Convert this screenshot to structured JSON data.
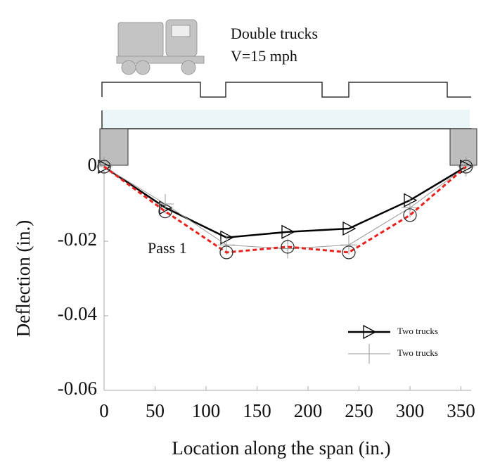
{
  "chart_data": {
    "type": "line",
    "annotations": [
      "Double trucks",
      "V=15 mph",
      "Pass 1"
    ],
    "xlabel": "Location along the span (in.)",
    "ylabel": "Deflection (in.)",
    "x": [
      0,
      60,
      120,
      180,
      240,
      300,
      355
    ],
    "series": [
      {
        "name": "Two trucks",
        "color": "#000000",
        "marker": "triangle",
        "linestyle": "solid",
        "values": [
          0,
          -0.011,
          -0.019,
          -0.0175,
          -0.0166,
          -0.009,
          0
        ]
      },
      {
        "name": "Two trucks",
        "color": "#9a9a9a",
        "marker": "plus",
        "linestyle": "solid",
        "values": [
          0,
          -0.01,
          -0.021,
          -0.022,
          -0.021,
          -0.011,
          0
        ]
      },
      {
        "color": "#e8211c",
        "marker": "circle",
        "linestyle": "dashed",
        "values": [
          0,
          -0.012,
          -0.023,
          -0.0215,
          -0.023,
          -0.013,
          0
        ]
      }
    ],
    "xlim": [
      0,
      360
    ],
    "xticks": [
      0,
      50,
      100,
      150,
      200,
      250,
      300,
      350
    ],
    "ylim": [
      -0.06,
      0
    ],
    "yticks": [
      -0.06,
      -0.04,
      -0.02,
      0
    ],
    "legend": "lower right"
  }
}
